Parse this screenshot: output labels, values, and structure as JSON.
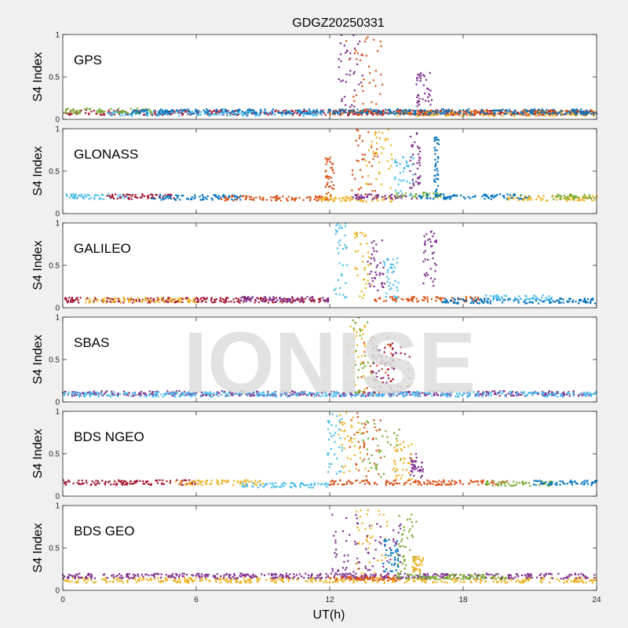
{
  "figure": {
    "title": "GDGZ20250331",
    "xlabel": "UT(h)",
    "watermark": "IONISE",
    "background": "#f0f0f0",
    "watermark_color": "#dddddd"
  },
  "colors": {
    "blue": "#0072bd",
    "orange": "#d95319",
    "yellow": "#edb120",
    "purple": "#7e2f8e",
    "green": "#77ac30",
    "cyan": "#4dbeee",
    "red": "#a2142f"
  },
  "chart_data": [
    {
      "type": "scatter",
      "label": "GPS",
      "ylabel": "S4 Index",
      "xlim": [
        0,
        24
      ],
      "ylim": [
        0,
        1
      ],
      "xticks": [
        0,
        6,
        12,
        18,
        24
      ],
      "yticks": [
        0,
        0.5,
        1
      ],
      "ytick_labels": [
        "0",
        "0.5",
        "1"
      ],
      "baseline": [
        {
          "color": "red",
          "x": [
            0,
            24
          ],
          "level": 0.08
        },
        {
          "color": "cyan",
          "x": [
            2,
            12
          ],
          "level": 0.07
        },
        {
          "color": "green",
          "x": [
            0,
            4
          ],
          "level": 0.1
        },
        {
          "color": "yellow",
          "x": [
            15,
            24
          ],
          "level": 0.07
        },
        {
          "color": "orange",
          "x": [
            12,
            24
          ],
          "level": 0.08
        },
        {
          "color": "blue",
          "x": [
            3,
            24
          ],
          "level": 0.09
        }
      ],
      "bursts": [
        {
          "color": "purple",
          "x": [
            12.3,
            13.5
          ],
          "y": [
            0.1,
            1.0
          ]
        },
        {
          "color": "orange",
          "x": [
            12.7,
            14.4
          ],
          "y": [
            0.1,
            1.0
          ]
        },
        {
          "color": "purple",
          "x": [
            15.9,
            16.6
          ],
          "y": [
            0.15,
            0.55
          ]
        }
      ]
    },
    {
      "type": "scatter",
      "label": "GLONASS",
      "ylabel": "S4 Index",
      "xlim": [
        0,
        24
      ],
      "ylim": [
        0,
        1
      ],
      "xticks": [
        0,
        6,
        12,
        18,
        24
      ],
      "yticks": [
        0,
        0.5,
        1
      ],
      "ytick_labels": [
        "0",
        "0.5",
        "1"
      ],
      "baseline": [
        {
          "color": "cyan",
          "x": [
            0,
            3
          ],
          "level": 0.2
        },
        {
          "color": "red",
          "x": [
            2,
            5
          ],
          "level": 0.2
        },
        {
          "color": "blue",
          "x": [
            4,
            8
          ],
          "level": 0.19
        },
        {
          "color": "orange",
          "x": [
            7,
            12
          ],
          "level": 0.18
        },
        {
          "color": "yellow",
          "x": [
            11.5,
            15
          ],
          "level": 0.17
        },
        {
          "color": "purple",
          "x": [
            13,
            16
          ],
          "level": 0.2
        },
        {
          "color": "green",
          "x": [
            15,
            17
          ],
          "level": 0.22
        },
        {
          "color": "blue",
          "x": [
            16,
            21
          ],
          "level": 0.2
        },
        {
          "color": "yellow",
          "x": [
            20,
            24
          ],
          "level": 0.18
        },
        {
          "color": "green",
          "x": [
            22,
            24
          ],
          "level": 0.2
        }
      ],
      "bursts": [
        {
          "color": "orange",
          "x": [
            11.8,
            12.2
          ],
          "y": [
            0.2,
            0.7
          ]
        },
        {
          "color": "orange",
          "x": [
            12.9,
            14.2
          ],
          "y": [
            0.2,
            1.0
          ]
        },
        {
          "color": "yellow",
          "x": [
            13.6,
            14.8
          ],
          "y": [
            0.3,
            1.0
          ]
        },
        {
          "color": "purple",
          "x": [
            15.6,
            16.1
          ],
          "y": [
            0.3,
            1.0
          ]
        },
        {
          "color": "cyan",
          "x": [
            14.9,
            15.8
          ],
          "y": [
            0.2,
            0.7
          ]
        },
        {
          "color": "blue",
          "x": [
            16.7,
            16.9
          ],
          "y": [
            0.2,
            0.9
          ]
        }
      ]
    },
    {
      "type": "scatter",
      "label": "GALILEO",
      "ylabel": "S4 Index",
      "xlim": [
        0,
        24
      ],
      "ylim": [
        0,
        1
      ],
      "xticks": [
        0,
        6,
        12,
        18,
        24
      ],
      "yticks": [
        0,
        0.5,
        1
      ],
      "ytick_labels": [
        "0",
        "0.5",
        "1"
      ],
      "baseline": [
        {
          "color": "red",
          "x": [
            0,
            12
          ],
          "level": 0.09
        },
        {
          "color": "yellow",
          "x": [
            1,
            6
          ],
          "level": 0.09
        },
        {
          "color": "purple",
          "x": [
            8,
            12
          ],
          "level": 0.1
        },
        {
          "color": "orange",
          "x": [
            14,
            19
          ],
          "level": 0.1
        },
        {
          "color": "blue",
          "x": [
            17,
            24
          ],
          "level": 0.08
        },
        {
          "color": "cyan",
          "x": [
            19,
            22
          ],
          "level": 0.12
        }
      ],
      "bursts": [
        {
          "color": "cyan",
          "x": [
            12.2,
            12.8
          ],
          "y": [
            0.1,
            1.0
          ]
        },
        {
          "color": "yellow",
          "x": [
            13.1,
            13.9
          ],
          "y": [
            0.1,
            0.9
          ]
        },
        {
          "color": "purple",
          "x": [
            13.7,
            14.5
          ],
          "y": [
            0.2,
            0.8
          ]
        },
        {
          "color": "cyan",
          "x": [
            14.4,
            15.1
          ],
          "y": [
            0.1,
            0.6
          ]
        },
        {
          "color": "purple",
          "x": [
            16.2,
            16.8
          ],
          "y": [
            0.2,
            1.0
          ]
        }
      ]
    },
    {
      "type": "scatter",
      "label": "SBAS",
      "ylabel": "S4 Index",
      "xlim": [
        0,
        24
      ],
      "ylim": [
        0,
        1
      ],
      "xticks": [
        0,
        6,
        12,
        18,
        24
      ],
      "yticks": [
        0,
        0.5,
        1
      ],
      "ytick_labels": [
        "0",
        "0.5",
        "1"
      ],
      "baseline": [
        {
          "color": "purple",
          "x": [
            0,
            24
          ],
          "level": 0.1
        },
        {
          "color": "cyan",
          "x": [
            0,
            24
          ],
          "level": 0.09
        }
      ],
      "bursts": [
        {
          "color": "yellow",
          "x": [
            12.7,
            13.6
          ],
          "y": [
            0.1,
            0.9
          ]
        },
        {
          "color": "green",
          "x": [
            13.0,
            14.2
          ],
          "y": [
            0.1,
            1.0
          ]
        },
        {
          "color": "orange",
          "x": [
            13.4,
            14.8
          ],
          "y": [
            0.1,
            0.8
          ]
        },
        {
          "color": "purple",
          "x": [
            13.9,
            15.1
          ],
          "y": [
            0.1,
            0.7
          ]
        },
        {
          "color": "red",
          "x": [
            14.3,
            15.6
          ],
          "y": [
            0.1,
            0.7
          ]
        }
      ]
    },
    {
      "type": "scatter",
      "label": "BDS NGEO",
      "ylabel": "S4 Index",
      "xlim": [
        0,
        24
      ],
      "ylim": [
        0,
        1
      ],
      "xticks": [
        0,
        6,
        12,
        18,
        24
      ],
      "yticks": [
        0,
        0.5,
        1
      ],
      "ytick_labels": [
        "0",
        "0.5",
        "1"
      ],
      "baseline": [
        {
          "color": "red",
          "x": [
            0,
            6
          ],
          "level": 0.16
        },
        {
          "color": "yellow",
          "x": [
            5,
            9
          ],
          "level": 0.16
        },
        {
          "color": "cyan",
          "x": [
            8,
            12
          ],
          "level": 0.13
        },
        {
          "color": "orange",
          "x": [
            12,
            20
          ],
          "level": 0.16
        },
        {
          "color": "green",
          "x": [
            19,
            22
          ],
          "level": 0.15
        },
        {
          "color": "blue",
          "x": [
            21,
            24
          ],
          "level": 0.16
        }
      ],
      "bursts": [
        {
          "color": "cyan",
          "x": [
            11.9,
            12.6
          ],
          "y": [
            0.2,
            1.0
          ]
        },
        {
          "color": "yellow",
          "x": [
            12.4,
            13.6
          ],
          "y": [
            0.2,
            1.0
          ]
        },
        {
          "color": "orange",
          "x": [
            12.9,
            14.3
          ],
          "y": [
            0.2,
            1.0
          ]
        },
        {
          "color": "green",
          "x": [
            13.4,
            15.2
          ],
          "y": [
            0.2,
            0.9
          ]
        },
        {
          "color": "purple",
          "x": [
            15.6,
            16.2
          ],
          "y": [
            0.2,
            0.5
          ]
        },
        {
          "color": "yellow",
          "x": [
            14.8,
            15.8
          ],
          "y": [
            0.2,
            0.7
          ]
        }
      ]
    },
    {
      "type": "scatter",
      "label": "BDS GEO",
      "ylabel": "S4 Index",
      "xlim": [
        0,
        24
      ],
      "ylim": [
        0,
        1
      ],
      "xticks": [
        0,
        6,
        12,
        18,
        24
      ],
      "xtick_labels": [
        "0",
        "6",
        "12",
        "18",
        "24"
      ],
      "yticks": [
        0,
        0.5,
        1
      ],
      "ytick_labels": [
        "0",
        "0.5",
        "1"
      ],
      "baseline": [
        {
          "color": "yellow",
          "x": [
            0,
            24
          ],
          "level": 0.12
        },
        {
          "color": "purple",
          "x": [
            0,
            24
          ],
          "level": 0.17
        },
        {
          "color": "green",
          "x": [
            15,
            20
          ],
          "level": 0.16
        },
        {
          "color": "orange",
          "x": [
            12,
            15
          ],
          "level": 0.14
        }
      ],
      "bursts": [
        {
          "color": "purple",
          "x": [
            12.1,
            13.4
          ],
          "y": [
            0.2,
            0.9
          ]
        },
        {
          "color": "yellow",
          "x": [
            13.2,
            14.6
          ],
          "y": [
            0.2,
            0.95
          ]
        },
        {
          "color": "purple",
          "x": [
            13.6,
            15.2
          ],
          "y": [
            0.2,
            0.8
          ]
        },
        {
          "color": "blue",
          "x": [
            14.4,
            15.1
          ],
          "y": [
            0.2,
            0.6
          ]
        },
        {
          "color": "green",
          "x": [
            15.0,
            15.9
          ],
          "y": [
            0.2,
            0.9
          ]
        },
        {
          "color": "yellow",
          "x": [
            15.7,
            16.2
          ],
          "y": [
            0.2,
            0.4
          ]
        }
      ]
    }
  ]
}
